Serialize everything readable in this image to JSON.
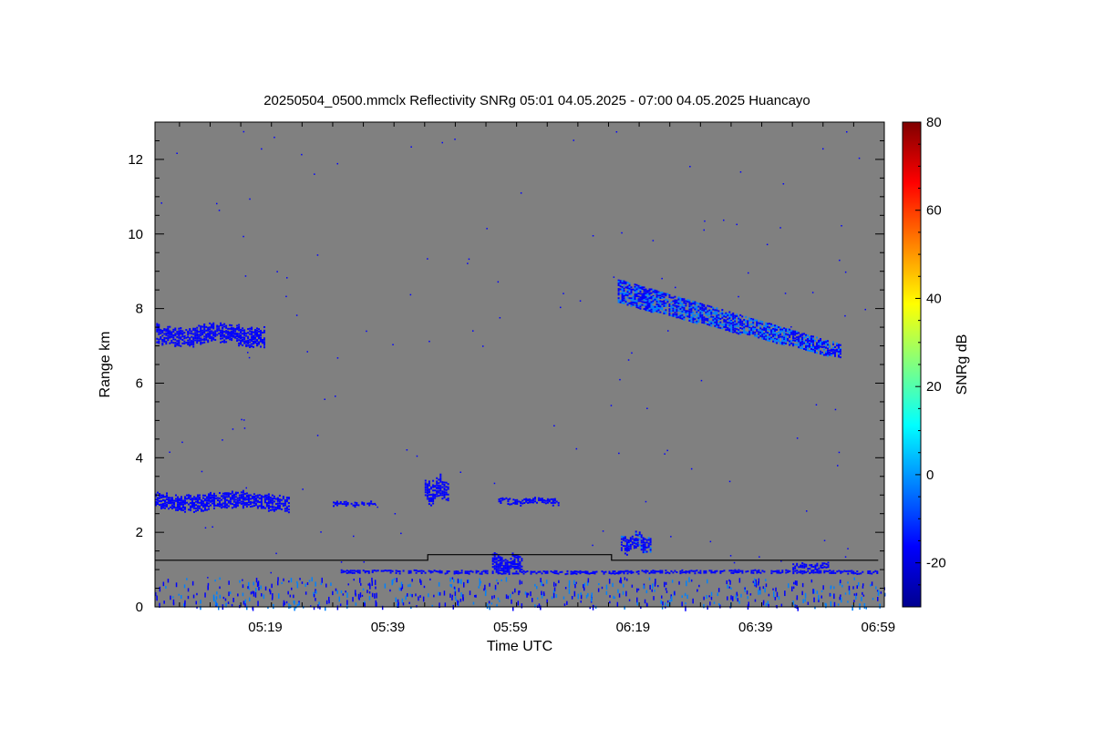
{
  "chart_data": {
    "type": "heatmap",
    "title": "20250504_0500.mmclx Reflectivity SNRg   05:01 04.05.2025 - 07:00 04.05.2025 Huancayo",
    "xlabel": "Time UTC",
    "ylabel": "Range km",
    "colorbar_label": "SNRg dB",
    "x_domain_min": [
      5,
      1
    ],
    "x_domain_max": [
      7,
      0
    ],
    "xlim": [
      "05:01",
      "07:00"
    ],
    "ylim": [
      0,
      13
    ],
    "zlim": [
      -30,
      80
    ],
    "xticks": [
      {
        "label": "05:19",
        "minute": 319
      },
      {
        "label": "05:39",
        "minute": 339
      },
      {
        "label": "05:59",
        "minute": 359
      },
      {
        "label": "06:19",
        "minute": 379
      },
      {
        "label": "06:39",
        "minute": 399
      },
      {
        "label": "06:59",
        "minute": 419
      }
    ],
    "yticks": [
      {
        "label": "0",
        "value": 0
      },
      {
        "label": "2",
        "value": 2
      },
      {
        "label": "4",
        "value": 4
      },
      {
        "label": "6",
        "value": 6
      },
      {
        "label": "8",
        "value": 8
      },
      {
        "label": "10",
        "value": 10
      },
      {
        "label": "12",
        "value": 12
      }
    ],
    "colorbar_ticks": [
      {
        "label": "-20",
        "value": -20
      },
      {
        "label": "0",
        "value": 0
      },
      {
        "label": "20",
        "value": 20
      },
      {
        "label": "40",
        "value": 40
      },
      {
        "label": "60",
        "value": 60
      },
      {
        "label": "80",
        "value": 80
      }
    ],
    "colormap": [
      "#00008f",
      "#0000ff",
      "#0080ff",
      "#00ffff",
      "#80ff80",
      "#ffff00",
      "#ff8000",
      "#ff0000",
      "#800000"
    ],
    "background_color": "#808080",
    "echo_layers": [
      {
        "name": "upper-cirrus-early",
        "t0": 301.2,
        "t1": 319.0,
        "h0": 7.0,
        "h1": 7.6,
        "snr": -17
      },
      {
        "name": "upper-cirrus-late",
        "t0": 376.5,
        "t1": 413.0,
        "h0": 6.9,
        "h1": 8.4,
        "snr": -12
      },
      {
        "name": "mid-layer-1",
        "t0": 301.0,
        "t1": 323.0,
        "h0": 2.6,
        "h1": 3.1,
        "snr": -18
      },
      {
        "name": "mid-layer-2",
        "t0": 330.0,
        "t1": 337.0,
        "h0": 2.7,
        "h1": 2.85,
        "snr": -18
      },
      {
        "name": "mid-layer-3",
        "t0": 345.0,
        "t1": 349.0,
        "h0": 2.8,
        "h1": 3.5,
        "snr": -18
      },
      {
        "name": "mid-layer-4",
        "t0": 357.0,
        "t1": 367.0,
        "h0": 2.75,
        "h1": 2.95,
        "snr": -18
      },
      {
        "name": "low-cell-1",
        "t0": 356.0,
        "t1": 361.0,
        "h0": 0.9,
        "h1": 1.45,
        "snr": -15
      },
      {
        "name": "low-cell-2",
        "t0": 377.0,
        "t1": 382.0,
        "h0": 1.45,
        "h1": 2.0,
        "snr": -14
      },
      {
        "name": "low-cell-3",
        "t0": 405.0,
        "t1": 411.0,
        "h0": 1.0,
        "h1": 1.2,
        "snr": -15
      },
      {
        "name": "near-surface-band",
        "t0": 331.0,
        "t1": 419.0,
        "h0": 0.9,
        "h1": 1.0,
        "snr": -18
      }
    ],
    "boundary_line": [
      {
        "t": 301.0,
        "h": 1.25
      },
      {
        "t": 345.5,
        "h": 1.25
      },
      {
        "t": 345.5,
        "h": 1.4
      },
      {
        "t": 375.5,
        "h": 1.4
      },
      {
        "t": 375.5,
        "h": 1.25
      },
      {
        "t": 419.0,
        "h": 1.25
      }
    ]
  }
}
